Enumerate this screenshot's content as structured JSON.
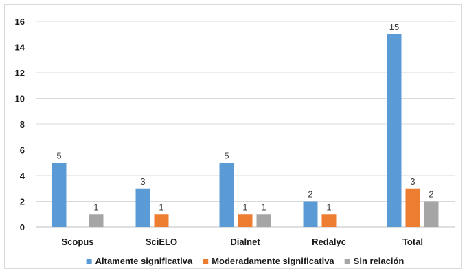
{
  "chart_data": {
    "type": "bar",
    "categories": [
      "Scopus",
      "SciELO",
      "Dialnet",
      "Redalyc",
      "Total"
    ],
    "series": [
      {
        "name": "Altamente significativa",
        "color": "#5b9bd5",
        "values": [
          5,
          3,
          5,
          2,
          15
        ]
      },
      {
        "name": "Moderadamente significativa",
        "color": "#ed7d31",
        "values": [
          null,
          1,
          1,
          1,
          3
        ]
      },
      {
        "name": "Sin relación",
        "color": "#a5a5a5",
        "values": [
          1,
          null,
          1,
          null,
          2
        ]
      }
    ],
    "title": "",
    "xlabel": "",
    "ylabel": "",
    "ylim": [
      0,
      16
    ],
    "yticks": [
      0,
      2,
      4,
      6,
      8,
      10,
      12,
      14,
      16
    ],
    "grid": "horizontal",
    "legend": "bottom"
  }
}
